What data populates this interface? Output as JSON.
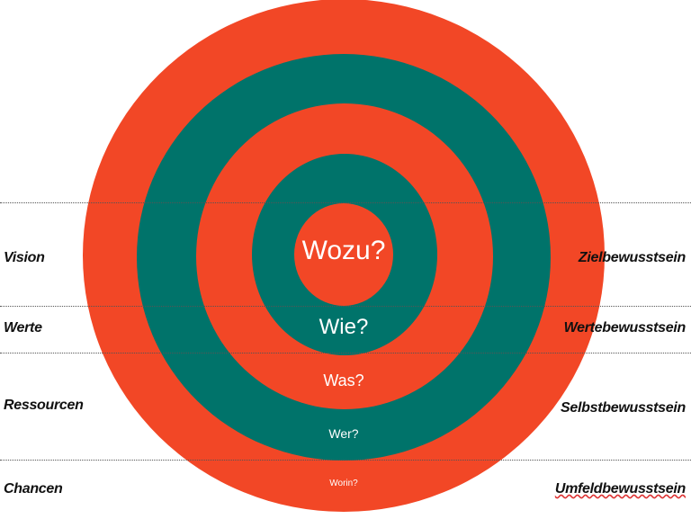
{
  "colors": {
    "orange": "#F24726",
    "teal": "#00736A"
  },
  "rings": [
    {
      "label": "Wozu?",
      "color": "orange"
    },
    {
      "label": "Wie?",
      "color": "teal"
    },
    {
      "label": "Was?",
      "color": "orange"
    },
    {
      "label": "Wer?",
      "color": "teal"
    },
    {
      "label": "Worin?",
      "color": "orange"
    }
  ],
  "left_labels": [
    "Vision",
    "Werte",
    "Ressourcen",
    "Chancen"
  ],
  "right_labels": [
    "Zielbewusstsein",
    "Wertebewusstsein",
    "Selbstbewusstsein",
    "Umfeldbewusstsein"
  ]
}
